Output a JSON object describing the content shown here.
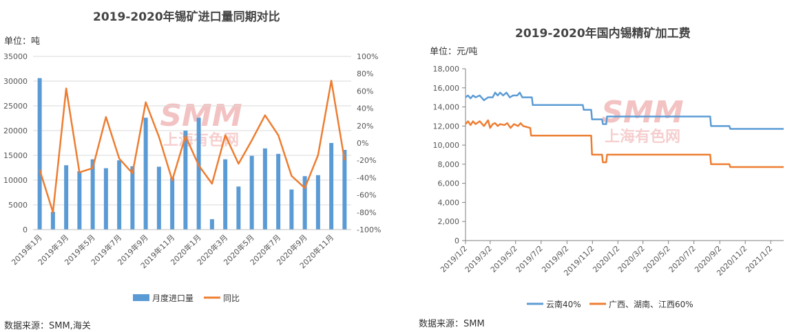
{
  "watermark": {
    "brand": "SMM",
    "name": "上海有色网",
    "color": "#f2b8b8"
  },
  "chart_data": [
    {
      "type": "bar",
      "title": "2019-2020年锡矿进口量同期对比",
      "unit_label": "单位：吨",
      "source": "数据来源：SMM,海关",
      "categories": [
        "2019年1月",
        "2019年2月",
        "2019年3月",
        "2019年4月",
        "2019年5月",
        "2019年6月",
        "2019年7月",
        "2019年8月",
        "2019年9月",
        "2019年10月",
        "2019年11月",
        "2019年12月",
        "2020年1月",
        "2020年2月",
        "2020年3月",
        "2020年4月",
        "2020年5月",
        "2020年6月",
        "2020年7月",
        "2020年8月",
        "2020年9月",
        "2020年10月",
        "2020年11月",
        "2020年12月"
      ],
      "category_labels_shown": [
        "2019年1月",
        "2019年3月",
        "2019年5月",
        "2019年7月",
        "2019年9月",
        "2019年11月",
        "2020年1月",
        "2020年3月",
        "2020年5月",
        "2020年7月",
        "2020年9月",
        "2020年11月"
      ],
      "series": [
        {
          "name": "月度进口量",
          "type": "bar",
          "axis": "left",
          "color": "#5b9bd5",
          "values": [
            30600,
            3600,
            13000,
            11800,
            14200,
            12400,
            14000,
            12800,
            22600,
            12700,
            10500,
            20000,
            22600,
            2100,
            14200,
            8700,
            14900,
            16400,
            15300,
            8100,
            10800,
            11000,
            17500,
            16100
          ]
        },
        {
          "name": "同比",
          "type": "line",
          "axis": "right",
          "color": "#ed7d31",
          "values": [
            -31,
            -80,
            63,
            -34,
            -29,
            30,
            -18,
            -35,
            47,
            7,
            -43,
            8,
            -26,
            -47,
            9,
            -24,
            3,
            32,
            9,
            -38,
            -52,
            -14,
            72,
            -20
          ]
        }
      ],
      "ylim_left": [
        0,
        35000
      ],
      "ylim_right": [
        -100,
        100
      ],
      "left_ticks": [
        "0",
        "5000",
        "10000",
        "15000",
        "20000",
        "25000",
        "30000",
        "35000"
      ],
      "right_ticks": [
        "-100%",
        "-80%",
        "-60%",
        "-40%",
        "-20%",
        "0%",
        "20%",
        "40%",
        "60%",
        "80%",
        "100%"
      ],
      "grid": true,
      "legend_position": "bottom"
    },
    {
      "type": "line",
      "title": "2019-2020年国内锡精矿加工费",
      "unit_label": "单位：元/吨",
      "source": "数据来源：SMM",
      "x_ticks": [
        "2019/1/2",
        "2019/3/2",
        "2019/5/2",
        "2019/7/2",
        "2019/9/2",
        "2019/11/2",
        "2020/1/2",
        "2020/3/2",
        "2020/5/2",
        "2020/7/2",
        "2020/9/2",
        "2020/11/2",
        "2021/1/2"
      ],
      "y_ticks": [
        "0",
        "2,000",
        "4,000",
        "6,000",
        "8,000",
        "10,000",
        "12,000",
        "14,000",
        "16,000",
        "18,000"
      ],
      "ylim": [
        0,
        18000
      ],
      "xlim": [
        "2019/1/2",
        "2021/2/2"
      ],
      "series": [
        {
          "name": "云南40%",
          "color": "#5b9bd5",
          "points": [
            [
              "2019/1/2",
              15000
            ],
            [
              "2019/1/8",
              15200
            ],
            [
              "2019/1/14",
              14900
            ],
            [
              "2019/1/20",
              15200
            ],
            [
              "2019/1/26",
              15000
            ],
            [
              "2019/2/5",
              15200
            ],
            [
              "2019/2/15",
              14700
            ],
            [
              "2019/2/25",
              15000
            ],
            [
              "2019/3/8",
              15000
            ],
            [
              "2019/3/14",
              15500
            ],
            [
              "2019/3/20",
              15200
            ],
            [
              "2019/3/26",
              15500
            ],
            [
              "2019/4/2",
              15200
            ],
            [
              "2019/4/10",
              15500
            ],
            [
              "2019/4/18",
              15000
            ],
            [
              "2019/4/26",
              15200
            ],
            [
              "2019/5/6",
              15200
            ],
            [
              "2019/5/12",
              15500
            ],
            [
              "2019/5/18",
              15000
            ],
            [
              "2019/6/10",
              15000
            ],
            [
              "2019/6/12",
              14200
            ],
            [
              "2019/10/10",
              14200
            ],
            [
              "2019/10/12",
              13700
            ],
            [
              "2019/10/30",
              13700
            ],
            [
              "2019/11/1",
              12700
            ],
            [
              "2019/11/25",
              12700
            ],
            [
              "2019/11/27",
              12200
            ],
            [
              "2019/12/5",
              12200
            ],
            [
              "2019/12/7",
              13000
            ],
            [
              "2020/8/10",
              13000
            ],
            [
              "2020/8/12",
              12000
            ],
            [
              "2020/9/25",
              12000
            ],
            [
              "2020/9/27",
              11700
            ],
            [
              "2021/2/2",
              11700
            ]
          ]
        },
        {
          "name": "广西、湖南、江西60%",
          "color": "#ed7d31",
          "points": [
            [
              "2019/1/2",
              12200
            ],
            [
              "2019/1/8",
              12500
            ],
            [
              "2019/1/14",
              12100
            ],
            [
              "2019/1/20",
              12500
            ],
            [
              "2019/1/26",
              12200
            ],
            [
              "2019/2/5",
              12500
            ],
            [
              "2019/2/15",
              12000
            ],
            [
              "2019/2/25",
              12600
            ],
            [
              "2019/3/2",
              11800
            ],
            [
              "2019/3/8",
              12200
            ],
            [
              "2019/3/14",
              12300
            ],
            [
              "2019/3/20",
              12000
            ],
            [
              "2019/3/26",
              12200
            ],
            [
              "2019/4/5",
              12100
            ],
            [
              "2019/4/12",
              12300
            ],
            [
              "2019/4/20",
              11800
            ],
            [
              "2019/4/28",
              12200
            ],
            [
              "2019/5/8",
              12000
            ],
            [
              "2019/5/14",
              12300
            ],
            [
              "2019/5/20",
              12000
            ],
            [
              "2019/6/6",
              11800
            ],
            [
              "2019/6/8",
              11000
            ],
            [
              "2019/10/30",
              11000
            ],
            [
              "2019/11/1",
              9000
            ],
            [
              "2019/11/25",
              9000
            ],
            [
              "2019/11/27",
              8200
            ],
            [
              "2019/12/5",
              8200
            ],
            [
              "2019/12/7",
              9000
            ],
            [
              "2020/8/10",
              9000
            ],
            [
              "2020/8/12",
              8000
            ],
            [
              "2020/9/25",
              8000
            ],
            [
              "2020/9/27",
              7700
            ],
            [
              "2021/2/2",
              7700
            ]
          ]
        }
      ],
      "grid": false,
      "legend_position": "bottom"
    }
  ]
}
